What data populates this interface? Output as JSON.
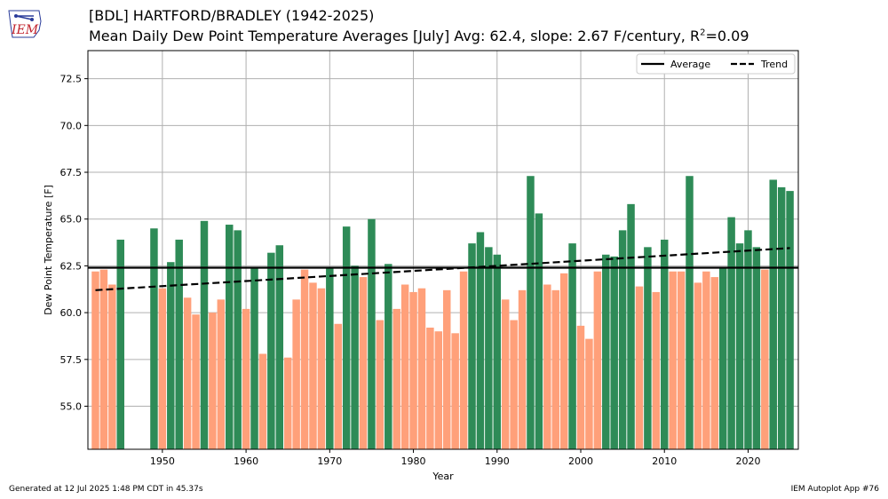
{
  "header": {
    "title": "[BDL] HARTFORD/BRADLEY (1942-2025)",
    "subtitle_main": "Mean Daily Dew Point Temperature Averages [July]  Avg: 62.4, slope: 2.67 F/century, R",
    "subtitle_sup": "2",
    "subtitle_tail": "=0.09",
    "logo_text": "IEM"
  },
  "footer": {
    "left": "Generated at 12 Jul 2025 1:48 PM CDT in 45.37s",
    "right": "IEM Autoplot App #76"
  },
  "colors": {
    "above": "#2e8b57",
    "below": "#ffa07a",
    "average_line": "#000000",
    "trend_line": "#000000",
    "grid": "#b0b0b0"
  },
  "chart_data": {
    "type": "bar",
    "xlabel": "Year",
    "ylabel": "Dew Point Temperature [F]",
    "xlim": [
      1941.1,
      2026.0
    ],
    "ylim": [
      52.7,
      74.0
    ],
    "xticks": [
      1950,
      1960,
      1970,
      1980,
      1990,
      2000,
      2010,
      2020
    ],
    "yticks": [
      55.0,
      57.5,
      60.0,
      62.5,
      65.0,
      67.5,
      70.0,
      72.5
    ],
    "ytick_labels": [
      "55.0",
      "57.5",
      "60.0",
      "62.5",
      "65.0",
      "67.5",
      "70.0",
      "72.5"
    ],
    "grid": true,
    "legend_position": "top-right",
    "average": 62.4,
    "trend": {
      "x": [
        1942,
        2025
      ],
      "y": [
        61.2,
        63.45
      ]
    },
    "legend": [
      {
        "label": "Average",
        "style": "solid"
      },
      {
        "label": "Trend",
        "style": "dashed"
      }
    ],
    "years": [
      1942,
      1943,
      1944,
      1945,
      1949,
      1950,
      1951,
      1952,
      1953,
      1954,
      1955,
      1956,
      1957,
      1958,
      1959,
      1960,
      1961,
      1962,
      1963,
      1964,
      1965,
      1966,
      1967,
      1968,
      1969,
      1970,
      1971,
      1972,
      1973,
      1974,
      1975,
      1976,
      1977,
      1978,
      1979,
      1980,
      1981,
      1982,
      1983,
      1984,
      1985,
      1986,
      1987,
      1988,
      1989,
      1990,
      1991,
      1992,
      1993,
      1994,
      1995,
      1996,
      1997,
      1998,
      1999,
      2000,
      2001,
      2002,
      2003,
      2004,
      2005,
      2006,
      2007,
      2008,
      2009,
      2010,
      2011,
      2012,
      2013,
      2014,
      2015,
      2016,
      2017,
      2018,
      2019,
      2020,
      2021,
      2022,
      2023,
      2024,
      2025
    ],
    "values": [
      62.2,
      62.3,
      61.5,
      63.9,
      64.5,
      61.3,
      62.7,
      63.9,
      60.8,
      59.9,
      64.9,
      60.0,
      60.7,
      64.7,
      64.4,
      60.2,
      62.4,
      57.8,
      63.2,
      63.6,
      57.6,
      60.7,
      62.3,
      61.6,
      61.3,
      62.4,
      59.4,
      64.6,
      62.5,
      61.9,
      65.0,
      59.6,
      62.6,
      60.2,
      61.5,
      61.1,
      61.3,
      59.2,
      59.0,
      61.2,
      58.9,
      62.2,
      63.7,
      64.3,
      63.5,
      63.1,
      60.7,
      59.6,
      61.2,
      67.3,
      65.3,
      61.5,
      61.2,
      62.1,
      63.7,
      59.3,
      58.6,
      62.2,
      63.1,
      63.0,
      64.4,
      65.8,
      61.4,
      63.5,
      61.1,
      63.9,
      62.2,
      62.2,
      67.3,
      61.6,
      62.2,
      61.9,
      62.4,
      65.1,
      63.7,
      64.4,
      63.5,
      62.3,
      67.1,
      66.7,
      66.5
    ]
  }
}
